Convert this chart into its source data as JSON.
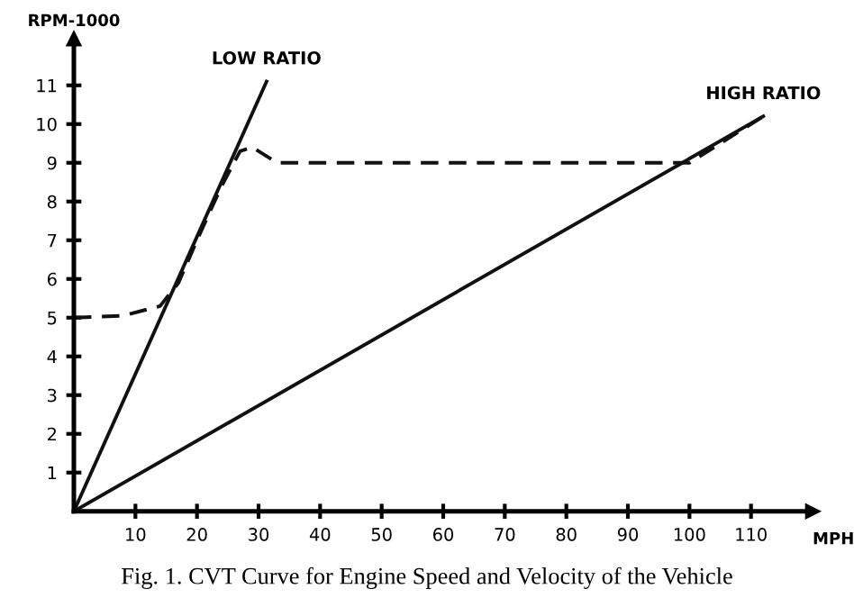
{
  "chart_data": {
    "type": "line",
    "xlabel": "MPH",
    "ylabel": "RPM-1000",
    "xlim": [
      0,
      120
    ],
    "ylim": [
      0,
      12.2
    ],
    "xticks": [
      10,
      20,
      30,
      40,
      50,
      60,
      70,
      80,
      90,
      100,
      110
    ],
    "yticks": [
      1,
      2,
      3,
      4,
      5,
      6,
      7,
      8,
      9,
      10,
      11
    ],
    "series": [
      {
        "name": "LOW RATIO",
        "color": "#111111",
        "line_style": "solid",
        "x": [
          0,
          31.3
        ],
        "values": [
          0,
          11.1
        ]
      },
      {
        "name": "HIGH RATIO",
        "color": "#111111",
        "line_style": "solid",
        "x": [
          0,
          112
        ],
        "values": [
          0,
          10.2
        ]
      },
      {
        "color": "#111111",
        "line_style": "dashed",
        "x": [
          0,
          8,
          14,
          17,
          20,
          24,
          27,
          29,
          33,
          100,
          112
        ],
        "values": [
          5,
          5.05,
          5.3,
          5.9,
          7.0,
          8.4,
          9.3,
          9.4,
          9.0,
          9.0,
          10.2
        ]
      }
    ],
    "grid": false,
    "legend": false,
    "marker": "none",
    "annotations": [
      "Fig. 1. CVT Curve for Engine Speed and Velocity of the Vehicle"
    ]
  }
}
